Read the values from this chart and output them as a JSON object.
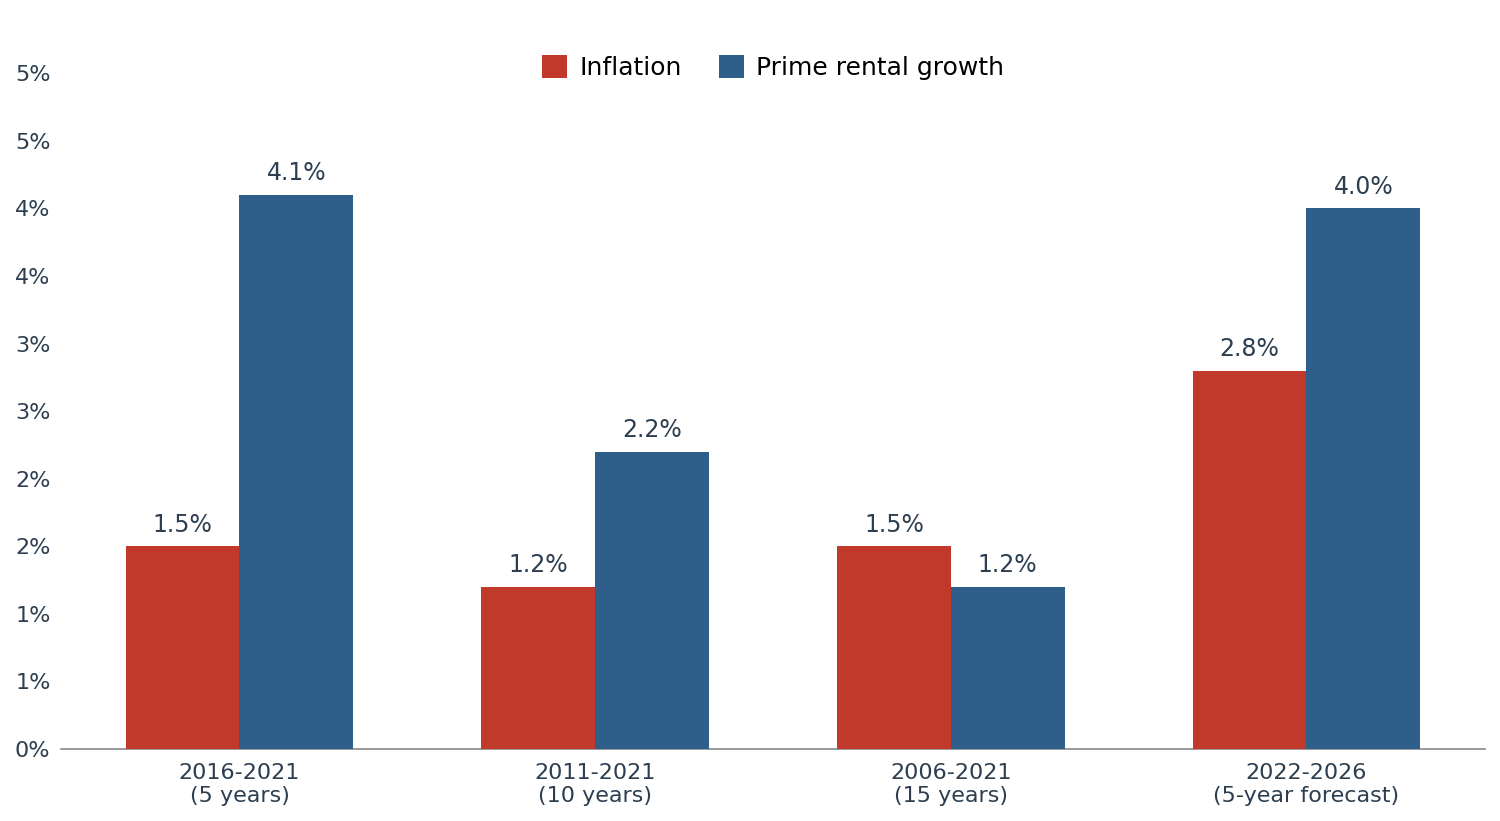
{
  "categories": [
    "2016-2021\n(5 years)",
    "2011-2021\n(10 years)",
    "2006-2021\n(15 years)",
    "2022-2026\n(5-year forecast)"
  ],
  "inflation_values": [
    1.5,
    1.2,
    1.5,
    2.8
  ],
  "rental_values": [
    4.1,
    2.2,
    1.2,
    4.0
  ],
  "inflation_color": "#C0392B",
  "rental_color": "#2E5F8A",
  "bar_width": 0.32,
  "ylim": [
    0,
    5.0
  ],
  "yticks": [
    0.0,
    0.5,
    1.0,
    1.5,
    2.0,
    2.5,
    3.0,
    3.5,
    4.0,
    4.5,
    5.0
  ],
  "ytick_labels": [
    "0%",
    "1%",
    "1%",
    "2%",
    "2%",
    "3%",
    "3%",
    "4%",
    "4%",
    "5%",
    "5%"
  ],
  "legend_inflation": "Inflation",
  "legend_rental": "Prime rental growth",
  "tick_fontsize": 16,
  "legend_fontsize": 18,
  "annotation_fontsize": 17,
  "background_color": "#FFFFFF",
  "spine_color": "#888888",
  "text_color": "#2C3E50"
}
